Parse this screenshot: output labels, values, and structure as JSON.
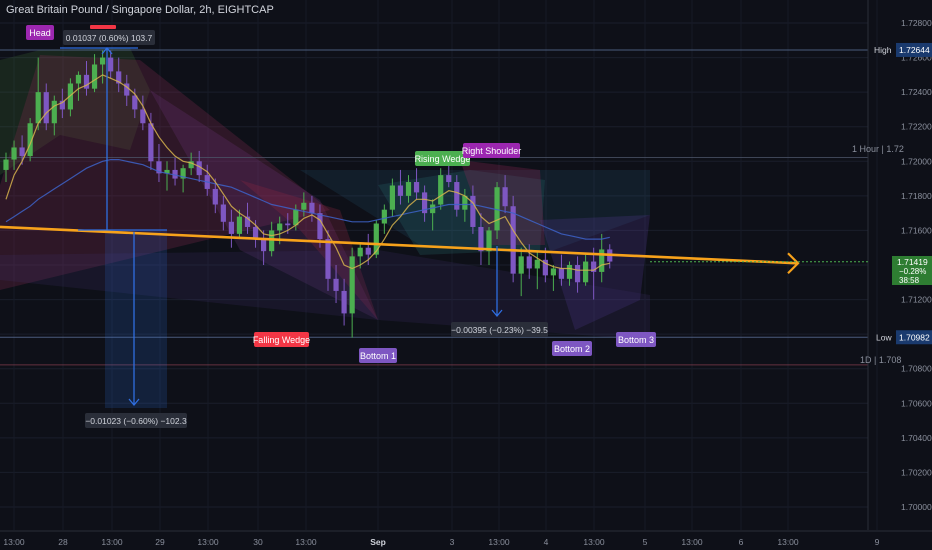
{
  "header": {
    "title": "Great Britain Pound / Singapore Dollar, 2h, EIGHTCAP"
  },
  "colors": {
    "background": "#0e1018",
    "up": "#4caf50",
    "down": "#7e57c2",
    "sma_fast": "#d6b34c",
    "sma_slow": "#3d63c9",
    "trendline": "#f7a21b",
    "measure": "#2f6ee0",
    "label_purple": "#7e57c2",
    "label_magenta": "#9c27b0",
    "label_green": "#4caf50",
    "label_red": "#f23645"
  },
  "price_axis": {
    "labels": [
      "1.72800",
      "1.72600",
      "1.72400",
      "1.72200",
      "1.72000",
      "1.71800",
      "1.71600",
      "1.71400",
      "1.71200",
      "1.71000",
      "1.70800",
      "1.70600",
      "1.70400",
      "1.70200",
      "1.70000"
    ]
  },
  "time_axis": {
    "labels": [
      "13:00",
      "28",
      "13:00",
      "29",
      "13:00",
      "30",
      "13:00",
      "Sep",
      "3",
      "13:00",
      "4",
      "13:00",
      "5",
      "13:00",
      "6",
      "13:00",
      "9"
    ]
  },
  "markers": {
    "high": {
      "label": "High",
      "value": "1.72644"
    },
    "low": {
      "label": "Low",
      "value": "1.70982"
    },
    "current": {
      "price": "1.71419",
      "change": "−0.28%",
      "countdown": "38:58"
    },
    "hour_note": "1 Hour | 1.72",
    "day_note": "1D | 1.708"
  },
  "annotations": {
    "head": "Head",
    "rising_wedge": "Rising Wedge",
    "right_shoulder": "Right Shoulder",
    "falling_wedge": "Falling Wedge",
    "bottom1": "Bottom 1",
    "bottom2": "Bottom 2",
    "bottom3": "Bottom 3",
    "measure1": "0.01037 (0.60%) 103.7",
    "measure2": "−0.01023 (−0.60%) −102.3",
    "measure3": "−0.00395 (−0.23%) −39.5"
  },
  "chart_data": {
    "type": "candlestick",
    "title": "Great Britain Pound / Singapore Dollar, 2h, EIGHTCAP",
    "ylim": [
      1.6995,
      1.729
    ],
    "y_ticks": [
      1.728,
      1.726,
      1.724,
      1.722,
      1.72,
      1.718,
      1.716,
      1.714,
      1.712,
      1.71,
      1.708,
      1.706,
      1.704,
      1.702,
      1.7
    ],
    "x_tick_labels": [
      "13:00",
      "28",
      "13:00",
      "29",
      "13:00",
      "30",
      "13:00",
      "Sep",
      "3",
      "13:00",
      "4",
      "13:00",
      "5",
      "13:00",
      "6",
      "13:00",
      "9"
    ],
    "series": [
      {
        "ohlc": [
          [
            1.7195,
            1.7205,
            1.7188,
            1.7201
          ],
          [
            1.7201,
            1.7212,
            1.7195,
            1.7208
          ],
          [
            1.7208,
            1.7215,
            1.7198,
            1.7203
          ],
          [
            1.7203,
            1.7225,
            1.72,
            1.7222
          ],
          [
            1.7222,
            1.726,
            1.7218,
            1.724
          ],
          [
            1.724,
            1.7245,
            1.7218,
            1.7222
          ],
          [
            1.7222,
            1.7238,
            1.7215,
            1.7235
          ],
          [
            1.7235,
            1.7242,
            1.7225,
            1.723
          ],
          [
            1.723,
            1.7248,
            1.7226,
            1.7245
          ],
          [
            1.7245,
            1.7252,
            1.7235,
            1.725
          ],
          [
            1.725,
            1.7258,
            1.7238,
            1.7242
          ],
          [
            1.7242,
            1.7262,
            1.724,
            1.7256
          ],
          [
            1.7256,
            1.7264,
            1.7245,
            1.726
          ],
          [
            1.726,
            1.7264,
            1.7248,
            1.7252
          ],
          [
            1.7252,
            1.726,
            1.724,
            1.7245
          ],
          [
            1.7245,
            1.725,
            1.7232,
            1.7238
          ],
          [
            1.7238,
            1.7242,
            1.7225,
            1.723
          ],
          [
            1.723,
            1.7238,
            1.7218,
            1.7222
          ],
          [
            1.7222,
            1.7228,
            1.7195,
            1.72
          ],
          [
            1.72,
            1.721,
            1.7188,
            1.7193
          ],
          [
            1.7193,
            1.72,
            1.7183,
            1.7195
          ],
          [
            1.7195,
            1.7202,
            1.7186,
            1.719
          ],
          [
            1.719,
            1.7198,
            1.7182,
            1.7196
          ],
          [
            1.7196,
            1.7205,
            1.7192,
            1.72
          ],
          [
            1.72,
            1.7206,
            1.7188,
            1.7192
          ],
          [
            1.7192,
            1.7198,
            1.718,
            1.7184
          ],
          [
            1.7184,
            1.719,
            1.717,
            1.7175
          ],
          [
            1.7175,
            1.718,
            1.716,
            1.7165
          ],
          [
            1.7165,
            1.7172,
            1.715,
            1.7158
          ],
          [
            1.7158,
            1.7172,
            1.7155,
            1.7168
          ],
          [
            1.7168,
            1.7176,
            1.7158,
            1.7162
          ],
          [
            1.7162,
            1.7166,
            1.715,
            1.7155
          ],
          [
            1.7155,
            1.716,
            1.714,
            1.7148
          ],
          [
            1.7148,
            1.7165,
            1.7145,
            1.716
          ],
          [
            1.716,
            1.7168,
            1.7152,
            1.7164
          ],
          [
            1.7164,
            1.717,
            1.7158,
            1.7163
          ],
          [
            1.7163,
            1.7175,
            1.716,
            1.7172
          ],
          [
            1.7172,
            1.7182,
            1.7168,
            1.7176
          ],
          [
            1.7176,
            1.718,
            1.7165,
            1.717
          ],
          [
            1.717,
            1.7175,
            1.715,
            1.7155
          ],
          [
            1.7155,
            1.716,
            1.7125,
            1.7132
          ],
          [
            1.7132,
            1.714,
            1.7118,
            1.7125
          ],
          [
            1.7125,
            1.7132,
            1.7105,
            1.7112
          ],
          [
            1.7112,
            1.715,
            1.7098,
            1.7145
          ],
          [
            1.7145,
            1.7152,
            1.7138,
            1.715
          ],
          [
            1.715,
            1.7158,
            1.714,
            1.7146
          ],
          [
            1.7146,
            1.7166,
            1.7144,
            1.7164
          ],
          [
            1.7164,
            1.7175,
            1.7158,
            1.7172
          ],
          [
            1.7172,
            1.719,
            1.7168,
            1.7186
          ],
          [
            1.7186,
            1.7195,
            1.7175,
            1.718
          ],
          [
            1.718,
            1.7192,
            1.7176,
            1.7188
          ],
          [
            1.7188,
            1.7196,
            1.7178,
            1.7182
          ],
          [
            1.7182,
            1.7186,
            1.7165,
            1.717
          ],
          [
            1.717,
            1.7178,
            1.716,
            1.7175
          ],
          [
            1.7175,
            1.7196,
            1.7172,
            1.7192
          ],
          [
            1.7192,
            1.7204,
            1.7185,
            1.7188
          ],
          [
            1.7188,
            1.7192,
            1.7168,
            1.7172
          ],
          [
            1.7172,
            1.7184,
            1.7165,
            1.718
          ],
          [
            1.718,
            1.7186,
            1.7158,
            1.7162
          ],
          [
            1.7162,
            1.717,
            1.714,
            1.7148
          ],
          [
            1.7148,
            1.7162,
            1.714,
            1.716
          ],
          [
            1.716,
            1.7188,
            1.7155,
            1.7185
          ],
          [
            1.7185,
            1.7192,
            1.717,
            1.7174
          ],
          [
            1.7174,
            1.718,
            1.713,
            1.7135
          ],
          [
            1.7135,
            1.715,
            1.7122,
            1.7145
          ],
          [
            1.7145,
            1.7152,
            1.7132,
            1.7138
          ],
          [
            1.7138,
            1.7148,
            1.7126,
            1.7143
          ],
          [
            1.7143,
            1.715,
            1.713,
            1.7134
          ],
          [
            1.7134,
            1.714,
            1.7125,
            1.7138
          ],
          [
            1.7138,
            1.7146,
            1.7128,
            1.7132
          ],
          [
            1.7132,
            1.7142,
            1.7128,
            1.714
          ],
          [
            1.714,
            1.7145,
            1.7124,
            1.713
          ],
          [
            1.713,
            1.7146,
            1.7128,
            1.7142
          ],
          [
            1.7142,
            1.715,
            1.712,
            1.7136
          ],
          [
            1.7136,
            1.7158,
            1.713,
            1.7149
          ],
          [
            1.7149,
            1.7152,
            1.7138,
            1.7142
          ]
        ]
      },
      {
        "name": "",
        "type": "sma",
        "values": [
          1.7178,
          1.7192,
          1.72,
          1.721,
          1.7222,
          1.7228,
          1.7232,
          1.7234,
          1.7238,
          1.7242,
          1.7244,
          1.7247,
          1.725,
          1.7248,
          1.7246,
          1.7243,
          1.7239,
          1.7232,
          1.7222,
          1.7214,
          1.7208,
          1.7203,
          1.72,
          1.7199,
          1.7197,
          1.7194,
          1.7188,
          1.7181,
          1.7174,
          1.717,
          1.7167,
          1.7163,
          1.7158,
          1.7157,
          1.7158,
          1.716,
          1.7163,
          1.7167,
          1.7169,
          1.7166,
          1.7158,
          1.715,
          1.714,
          1.7138,
          1.714,
          1.7143,
          1.7148,
          1.7155,
          1.7163,
          1.7168,
          1.7174,
          1.7178,
          1.7178,
          1.7177,
          1.718,
          1.7183,
          1.7182,
          1.718,
          1.7176,
          1.7168,
          1.7164,
          1.7166,
          1.7168,
          1.716,
          1.7153,
          1.7147,
          1.7144,
          1.7141,
          1.7139,
          1.7138,
          1.7138,
          1.7137,
          1.7137,
          1.7137,
          1.714,
          1.7141
        ]
      },
      {
        "name": "",
        "type": "sma",
        "values": [
          1.7165,
          1.7168,
          1.7171,
          1.7174,
          1.7178,
          1.7181,
          1.7184,
          1.7187,
          1.719,
          1.7193,
          1.7196,
          1.7198,
          1.72,
          1.7201,
          1.7201,
          1.72,
          1.7199,
          1.7198,
          1.7196,
          1.7194,
          1.7193,
          1.7192,
          1.7191,
          1.719,
          1.7189,
          1.7188,
          1.7187,
          1.7186,
          1.7185,
          1.7183,
          1.7181,
          1.7179,
          1.7177,
          1.7175,
          1.7174,
          1.7173,
          1.7172,
          1.7171,
          1.717,
          1.7169,
          1.7168,
          1.7167,
          1.7166,
          1.7165,
          1.7165,
          1.7165,
          1.7166,
          1.7167,
          1.7168,
          1.7169,
          1.717,
          1.7171,
          1.7172,
          1.7173,
          1.7174,
          1.7175,
          1.7175,
          1.7175,
          1.7175,
          1.7174,
          1.7173,
          1.7172,
          1.7171,
          1.717,
          1.7168,
          1.7166,
          1.7164,
          1.7162,
          1.716,
          1.7158,
          1.7157,
          1.7156,
          1.7155,
          1.7155,
          1.7155,
          1.7156
        ]
      }
    ],
    "trendline": {
      "from": [
        0,
        1.7162
      ],
      "to": [
        81,
        1.7141
      ]
    },
    "horizontal_lines": [
      1.72644,
      1.72022,
      1.70982,
      1.70822
    ],
    "last_price": 1.71419
  }
}
